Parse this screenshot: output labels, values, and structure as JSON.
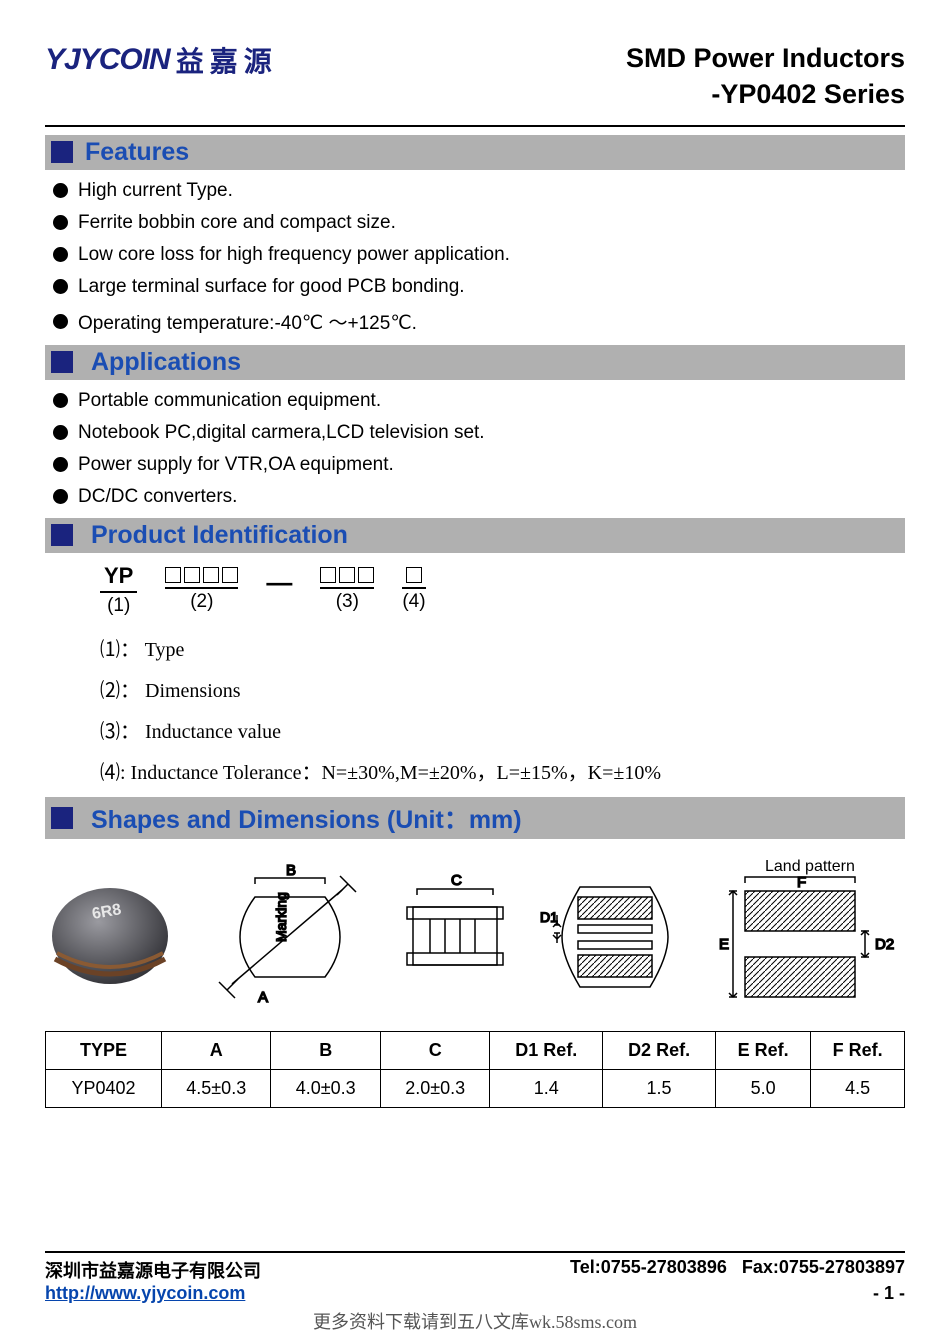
{
  "logo": {
    "en": "YJYCOIN",
    "cn": "益嘉源"
  },
  "title": {
    "line1": "SMD Power Inductors",
    "line2": "-YP0402 Series"
  },
  "features": {
    "heading": "Features",
    "items": [
      "High current Type.",
      "Ferrite bobbin core and compact size.",
      "Low core loss for high frequency power application.",
      "Large terminal surface for good PCB bonding.",
      "Operating temperature:-40℃ ～+125℃."
    ]
  },
  "applications": {
    "heading": "Applications",
    "items": [
      "Portable communication equipment.",
      "Notebook PC,digital carmera,LCD television set.",
      "Power supply for VTR,OA equipment.",
      "DC/DC converters."
    ]
  },
  "product_id": {
    "heading": "Product Identification",
    "parts": {
      "p1": "YP",
      "n1": "(1)",
      "n2": "(2)",
      "n3": "(3)",
      "n4": "(4)"
    },
    "legend": {
      "l1": "⑴： Type",
      "l2": "⑵： Dimensions",
      "l3": "⑶： Inductance value",
      "l4": "⑷:  Inductance Tolerance：N=±30%,M=±20%，L=±15%，K=±10%"
    }
  },
  "shapes": {
    "heading": "Shapes and Dimensions (Unit：mm)",
    "labels": {
      "A": "A",
      "B": "B",
      "C": "C",
      "D1": "D1",
      "D2": "D2",
      "E": "E",
      "F": "F",
      "marking": "Marking",
      "land_pattern": "Land pattern",
      "chip": "6R8"
    },
    "table": {
      "columns": [
        "TYPE",
        "A",
        "B",
        "C",
        "D1 Ref.",
        "D2 Ref.",
        "E Ref.",
        "F Ref."
      ],
      "rows": [
        [
          "YP0402",
          "4.5±0.3",
          "4.0±0.3",
          "2.0±0.3",
          "1.4",
          "1.5",
          "5.0",
          "4.5"
        ]
      ]
    }
  },
  "footer": {
    "company": "深圳市益嘉源电子有限公司",
    "tel": "Tel:0755-27803896",
    "fax": "Fax:0755-27803897",
    "url": "http://www.yjycoin.com",
    "page": "- 1 -"
  },
  "watermark": "更多资料下载请到五八文库wk.58sms.com",
  "colors": {
    "brand": "#1a237e",
    "heading_text": "#1a4db3",
    "heading_bg": "#b0b0b0",
    "link": "#0645ad"
  }
}
